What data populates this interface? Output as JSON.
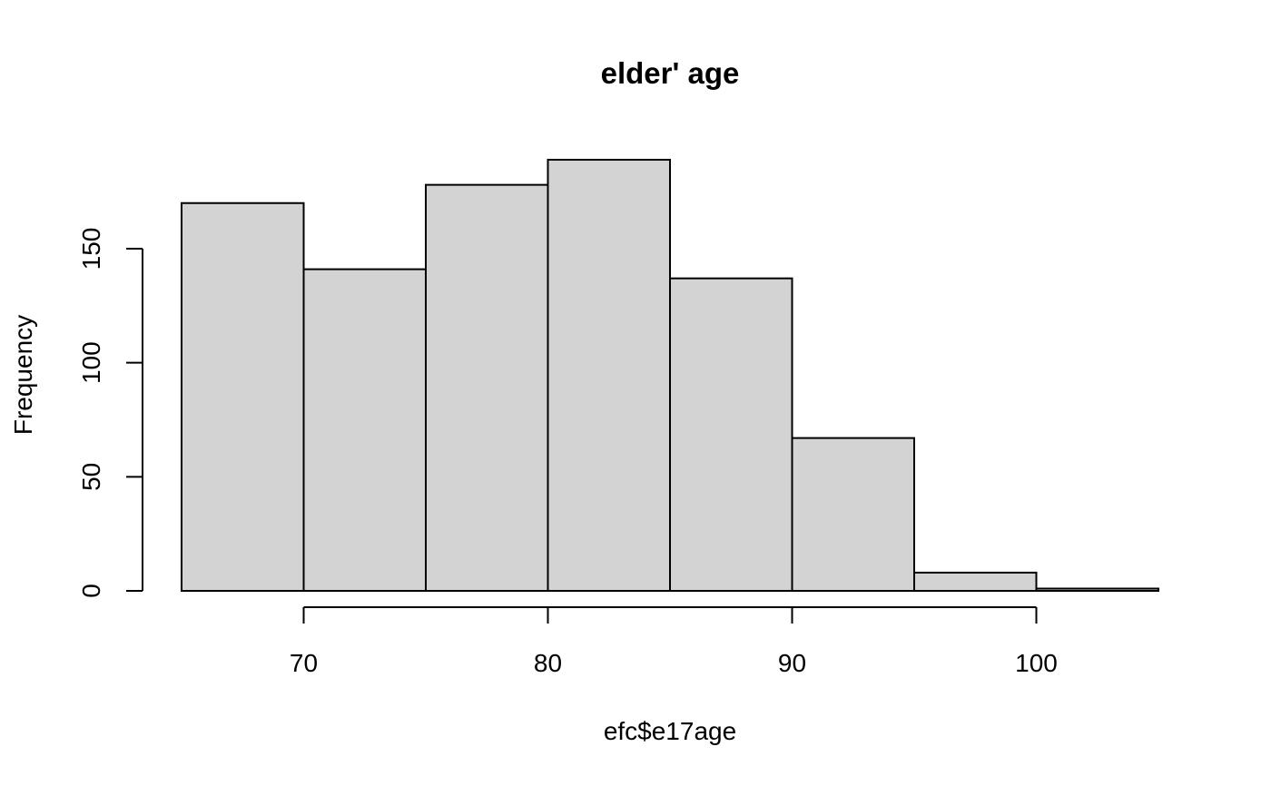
{
  "chart_data": {
    "type": "bar",
    "subtype": "histogram",
    "title": "elder' age",
    "xlabel": "efc$e17age",
    "ylabel": "Frequency",
    "bins": [
      {
        "from": 65,
        "to": 70,
        "count": 170
      },
      {
        "from": 70,
        "to": 75,
        "count": 141
      },
      {
        "from": 75,
        "to": 80,
        "count": 178
      },
      {
        "from": 80,
        "to": 85,
        "count": 189
      },
      {
        "from": 85,
        "to": 90,
        "count": 137
      },
      {
        "from": 90,
        "to": 95,
        "count": 67
      },
      {
        "from": 95,
        "to": 100,
        "count": 8
      },
      {
        "from": 100,
        "to": 105,
        "count": 1
      }
    ],
    "xlim": [
      65,
      105
    ],
    "ylim": [
      0,
      189
    ],
    "x_ticks": [
      70,
      80,
      90,
      100
    ],
    "y_ticks": [
      0,
      50,
      100,
      150
    ],
    "bar_fill": "#d3d3d3",
    "bar_stroke": "#000000",
    "grid": false
  }
}
